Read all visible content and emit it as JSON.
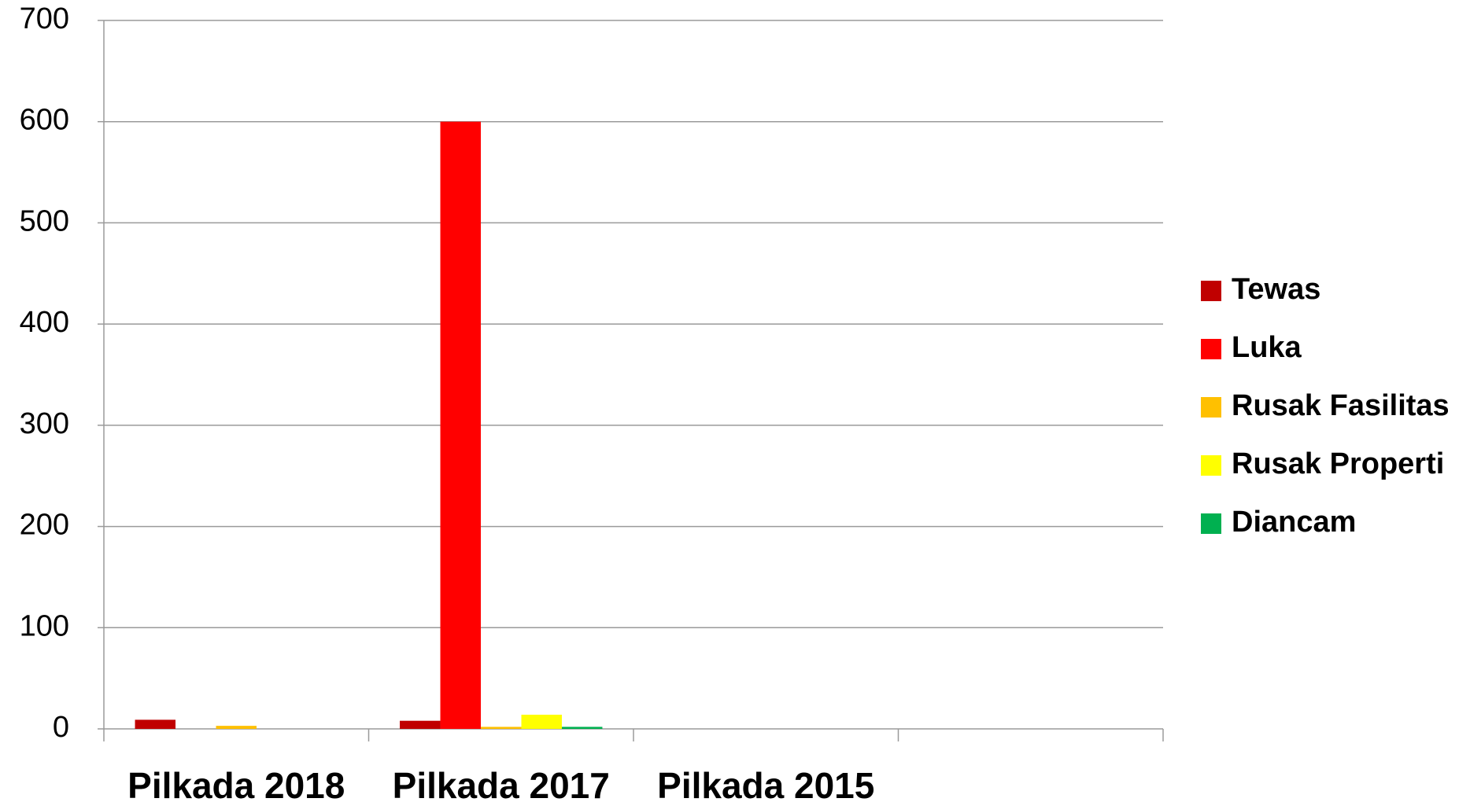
{
  "chart_data": {
    "type": "bar",
    "categories": [
      "Pilkada 2018",
      "Pilkada 2017",
      "Pilkada 2015",
      null
    ],
    "series": [
      {
        "name": "Tewas",
        "color": "#c00000",
        "values": [
          9,
          8,
          0,
          null
        ]
      },
      {
        "name": "Luka",
        "color": "#ff0000",
        "values": [
          0,
          600,
          0,
          null
        ]
      },
      {
        "name": "Rusak Fasilitas",
        "color": "#ffc000",
        "values": [
          3,
          2,
          0,
          null
        ]
      },
      {
        "name": "Rusak Properti",
        "color": "#ffff00",
        "values": [
          0,
          14,
          0,
          null
        ]
      },
      {
        "name": "Diancam",
        "color": "#00b050",
        "values": [
          0,
          2,
          0,
          null
        ]
      }
    ],
    "ylim": [
      0,
      700
    ],
    "yticks": [
      0,
      100,
      200,
      300,
      400,
      500,
      600,
      700
    ],
    "grid": true,
    "legend": "right"
  }
}
